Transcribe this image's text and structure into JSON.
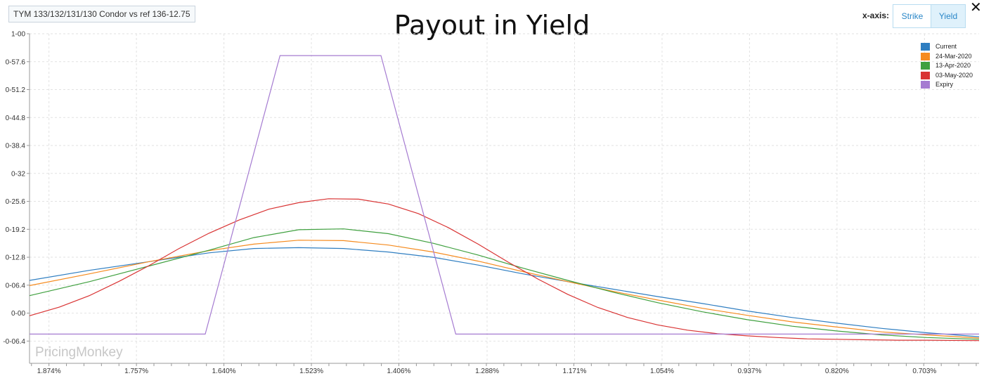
{
  "header": {
    "tag": "TYM 133/132/131/130 Condor vs ref 136-12.75",
    "xaxis_label": "x-axis:",
    "buttons": [
      "Strike",
      "Yield"
    ],
    "active_button": "Yield",
    "close_icon": "close-icon"
  },
  "watermark": "PricingMonkey",
  "chart_data": {
    "type": "line",
    "title": "Payout in Yield",
    "xlabel": "",
    "ylabel": "",
    "x_ticks": [
      "1.874%",
      "1.757%",
      "1.640%",
      "1.523%",
      "1.406%",
      "1.288%",
      "1.171%",
      "1.054%",
      "0.937%",
      "0.820%",
      "0.703%"
    ],
    "y_ticks": [
      "1-00",
      "0-57.6",
      "0-51.2",
      "0-44.8",
      "0-38.4",
      "0-32",
      "0-25.6",
      "0-19.2",
      "0-12.8",
      "0-06.4",
      "0-00",
      "-0-06.4"
    ],
    "y_tick_values": [
      64,
      57.6,
      51.2,
      44.8,
      38.4,
      32,
      25.6,
      19.2,
      12.8,
      6.4,
      0,
      -6.4
    ],
    "xlim": [
      1.9,
      0.63
    ],
    "ylim": [
      -11.5,
      64
    ],
    "grid": true,
    "legend_position": "top-right",
    "series": [
      {
        "name": "Current",
        "color": "#2f7ec1",
        "x": [
          1.9,
          1.82,
          1.74,
          1.66,
          1.6,
          1.54,
          1.48,
          1.42,
          1.36,
          1.3,
          1.24,
          1.18,
          1.12,
          1.06,
          1.0,
          0.94,
          0.88,
          0.82,
          0.76,
          0.7,
          0.63
        ],
        "y": [
          7.5,
          9.8,
          11.8,
          13.8,
          14.8,
          15.0,
          14.8,
          14.0,
          12.8,
          11.0,
          9.0,
          7.2,
          5.5,
          3.8,
          2.2,
          0.5,
          -1.0,
          -2.3,
          -3.5,
          -4.5,
          -5.4
        ]
      },
      {
        "name": "24-Mar-2020",
        "color": "#f58b1f",
        "x": [
          1.9,
          1.82,
          1.74,
          1.66,
          1.6,
          1.54,
          1.48,
          1.42,
          1.36,
          1.3,
          1.24,
          1.18,
          1.12,
          1.06,
          1.0,
          0.94,
          0.88,
          0.82,
          0.76,
          0.7,
          0.63
        ],
        "y": [
          6.3,
          9.0,
          11.8,
          14.3,
          15.8,
          16.7,
          16.6,
          15.6,
          14.0,
          11.9,
          9.5,
          7.2,
          5.0,
          3.0,
          1.1,
          -0.5,
          -2.0,
          -3.2,
          -4.3,
          -5.0,
          -5.7
        ]
      },
      {
        "name": "13-Apr-2020",
        "color": "#3fa03f",
        "x": [
          1.9,
          1.82,
          1.74,
          1.66,
          1.6,
          1.54,
          1.48,
          1.42,
          1.36,
          1.3,
          1.24,
          1.18,
          1.12,
          1.06,
          1.0,
          0.94,
          0.88,
          0.82,
          0.76,
          0.7,
          0.63
        ],
        "y": [
          4.0,
          7.2,
          10.8,
          14.4,
          17.3,
          19.1,
          19.3,
          18.2,
          16.0,
          13.3,
          10.3,
          7.5,
          4.8,
          2.4,
          0.3,
          -1.5,
          -3.0,
          -4.1,
          -5.0,
          -5.6,
          -6.0
        ]
      },
      {
        "name": "03-May-2020",
        "color": "#d93333",
        "x": [
          1.9,
          1.86,
          1.82,
          1.78,
          1.74,
          1.7,
          1.66,
          1.62,
          1.58,
          1.54,
          1.5,
          1.46,
          1.42,
          1.38,
          1.34,
          1.3,
          1.26,
          1.22,
          1.18,
          1.14,
          1.1,
          1.06,
          1.02,
          0.98,
          0.94,
          0.9,
          0.86,
          0.82,
          0.78,
          0.74,
          0.7,
          0.63
        ],
        "y": [
          -0.6,
          1.4,
          4.0,
          7.3,
          10.9,
          14.8,
          18.3,
          21.3,
          23.8,
          25.3,
          26.2,
          26.1,
          25.0,
          22.8,
          19.6,
          15.8,
          11.7,
          7.8,
          4.3,
          1.3,
          -1.0,
          -2.7,
          -3.9,
          -4.7,
          -5.2,
          -5.6,
          -5.9,
          -6.0,
          -6.1,
          -6.2,
          -6.2,
          -6.3
        ]
      },
      {
        "name": "Expiry",
        "color": "#a57bd1",
        "x": [
          1.9,
          1.665,
          1.565,
          1.43,
          1.33,
          0.63
        ],
        "y": [
          -4.8,
          -4.8,
          59.0,
          59.0,
          -4.8,
          -4.8
        ]
      }
    ]
  }
}
